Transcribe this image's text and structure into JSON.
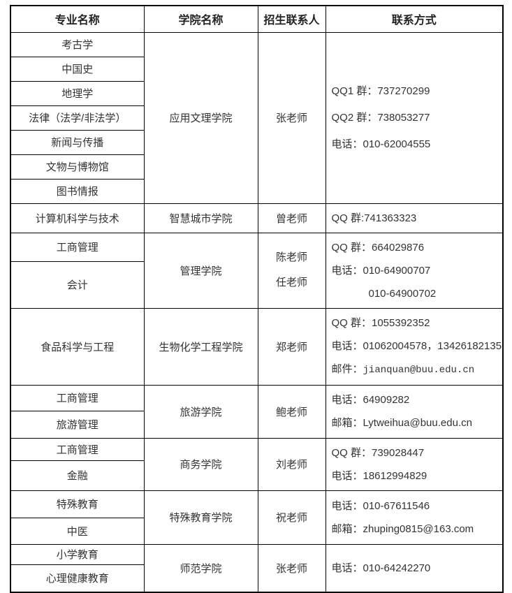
{
  "table": {
    "headers": [
      "专业名称",
      "学院名称",
      "招生联系人",
      "联系方式"
    ],
    "groups": [
      {
        "majors": [
          "考古学",
          "中国史",
          "地理学",
          "法律（法学/非法学）",
          "新闻与传播",
          "文物与博物馆",
          "图书情报"
        ],
        "college": "应用文理学院",
        "persons": [
          "张老师"
        ],
        "lines": [
          "QQ1 群：737270299",
          "QQ2 群：738053277",
          "电话：010-62004555"
        ]
      },
      {
        "majors": [
          "计算机科学与技术"
        ],
        "college": "智慧城市学院",
        "persons": [
          "曾老师"
        ],
        "lines": [
          "QQ 群:741363323"
        ]
      },
      {
        "majors": [
          "工商管理",
          "会计"
        ],
        "college": "管理学院",
        "persons": [
          "陈老师",
          "任老师"
        ],
        "lines": [
          "QQ 群：664029876",
          "电话：010-64900707",
          "010-64900702"
        ]
      },
      {
        "majors": [
          "食品科学与工程"
        ],
        "college": "生物化学工程学院",
        "persons": [
          "郑老师"
        ],
        "lines": [
          "QQ 群：1055392352",
          "电话：01062004578，13426182135"
        ],
        "email_label": "邮件：",
        "email_value": "jianquan@buu.edu.cn"
      },
      {
        "majors": [
          "工商管理",
          "旅游管理"
        ],
        "college": "旅游学院",
        "persons": [
          "鲍老师"
        ],
        "lines": [
          "电话：64909282",
          "邮箱：Lytweihua@buu.edu.cn"
        ]
      },
      {
        "majors": [
          "工商管理",
          "金融"
        ],
        "college": "商务学院",
        "persons": [
          "刘老师"
        ],
        "lines": [
          "QQ 群：739028447",
          "电话：18612994829"
        ]
      },
      {
        "majors": [
          "特殊教育",
          "中医"
        ],
        "college": "特殊教育学院",
        "persons": [
          "祝老师"
        ],
        "lines": [
          "电话：010-67611546",
          "邮箱：zhuping0815@163.com"
        ]
      },
      {
        "majors": [
          "小学教育",
          "心理健康教育"
        ],
        "college": "师范学院",
        "persons": [
          "张老师"
        ],
        "lines": [
          "电话：010-64242270"
        ]
      }
    ]
  }
}
